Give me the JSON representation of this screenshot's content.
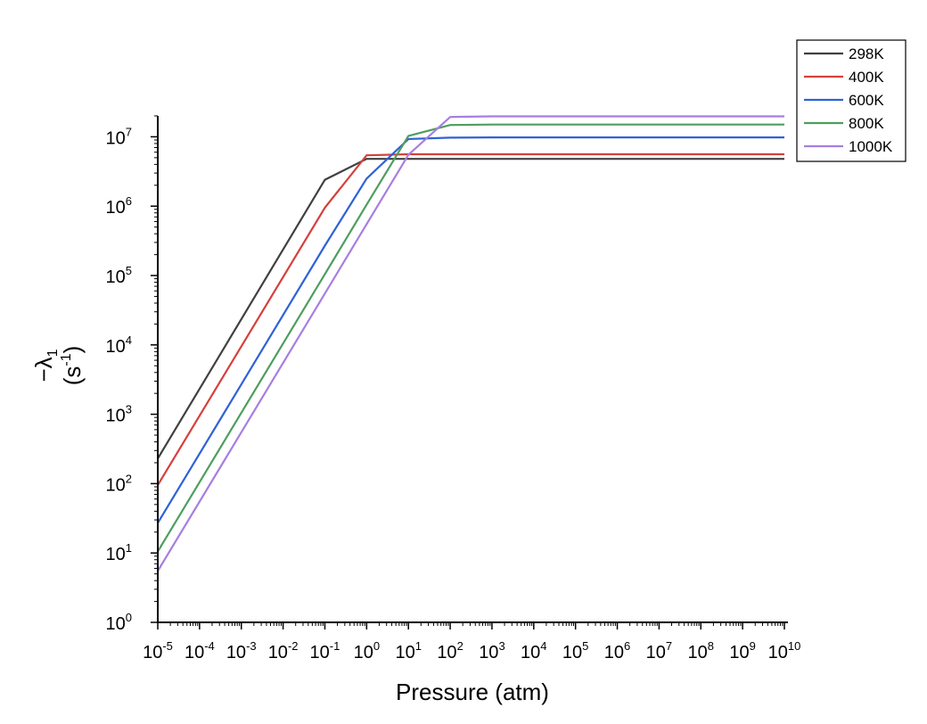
{
  "chart_data": {
    "type": "line",
    "title": "",
    "xlabel": "Pressure (atm)",
    "ylabel_line1": "−λ",
    "ylabel_line1_sub": "1",
    "ylabel_line2": "(s",
    "ylabel_line2_sup": "-1",
    "ylabel_line2_end": ")",
    "x_scale": "log",
    "y_scale": "log",
    "xlim": [
      1e-05,
      10000000000.0
    ],
    "ylim": [
      1,
      20000000.0
    ],
    "x_ticks": [
      {
        "base": "10",
        "exp": "-5",
        "value": 1e-05
      },
      {
        "base": "10",
        "exp": "-4",
        "value": 0.0001
      },
      {
        "base": "10",
        "exp": "-3",
        "value": 0.001
      },
      {
        "base": "10",
        "exp": "-2",
        "value": 0.01
      },
      {
        "base": "10",
        "exp": "-1",
        "value": 0.1
      },
      {
        "base": "10",
        "exp": "0",
        "value": 1
      },
      {
        "base": "10",
        "exp": "1",
        "value": 10
      },
      {
        "base": "10",
        "exp": "2",
        "value": 100
      },
      {
        "base": "10",
        "exp": "3",
        "value": 1000.0
      },
      {
        "base": "10",
        "exp": "4",
        "value": 10000.0
      },
      {
        "base": "10",
        "exp": "5",
        "value": 100000.0
      },
      {
        "base": "10",
        "exp": "6",
        "value": 1000000.0
      },
      {
        "base": "10",
        "exp": "7",
        "value": 10000000.0
      },
      {
        "base": "10",
        "exp": "8",
        "value": 100000000.0
      },
      {
        "base": "10",
        "exp": "9",
        "value": 1000000000.0
      },
      {
        "base": "10",
        "exp": "10",
        "value": 10000000000.0
      }
    ],
    "y_ticks": [
      {
        "base": "10",
        "exp": "0",
        "value": 1
      },
      {
        "base": "10",
        "exp": "1",
        "value": 10
      },
      {
        "base": "10",
        "exp": "2",
        "value": 100
      },
      {
        "base": "10",
        "exp": "3",
        "value": 1000.0
      },
      {
        "base": "10",
        "exp": "4",
        "value": 10000.0
      },
      {
        "base": "10",
        "exp": "5",
        "value": 100000.0
      },
      {
        "base": "10",
        "exp": "6",
        "value": 1000000.0
      },
      {
        "base": "10",
        "exp": "7",
        "value": 10000000.0
      }
    ],
    "legend_position": "top-right",
    "grid": false,
    "series": [
      {
        "name": "298K",
        "color": "#404040",
        "x": [
          1e-05,
          0.1,
          1,
          10,
          100,
          1000.0,
          10000000000.0
        ],
        "y": [
          230,
          2400000.0,
          4800000.0,
          4800000.0,
          4800000.0,
          4800000.0,
          4800000.0
        ]
      },
      {
        "name": "400K",
        "color": "#d6403b",
        "x": [
          1e-05,
          0.1,
          1,
          10,
          100,
          1000.0,
          10000000000.0
        ],
        "y": [
          95,
          950000.0,
          5400000.0,
          5600000.0,
          5600000.0,
          5600000.0,
          5600000.0
        ]
      },
      {
        "name": "600K",
        "color": "#2f62d6",
        "x": [
          1e-05,
          0.1,
          1,
          10,
          100,
          1000.0,
          10000000000.0
        ],
        "y": [
          27,
          270000.0,
          2500000.0,
          9300000.0,
          9700000.0,
          9800000.0,
          9800000.0
        ]
      },
      {
        "name": "800K",
        "color": "#4e9e5e",
        "x": [
          1e-05,
          0.1,
          1,
          10,
          100,
          1000.0,
          10000000000.0
        ],
        "y": [
          10.5,
          105000.0,
          1050000.0,
          10300000.0,
          14800000.0,
          15000000.0,
          15000000.0
        ]
      },
      {
        "name": "1000K",
        "color": "#a77ee2",
        "x": [
          1e-05,
          0.1,
          1,
          10,
          100,
          1000.0,
          10000000000.0
        ],
        "y": [
          5.5,
          55000.0,
          550000.0,
          5500000.0,
          19300000.0,
          19700000.0,
          19700000.0
        ]
      }
    ]
  }
}
